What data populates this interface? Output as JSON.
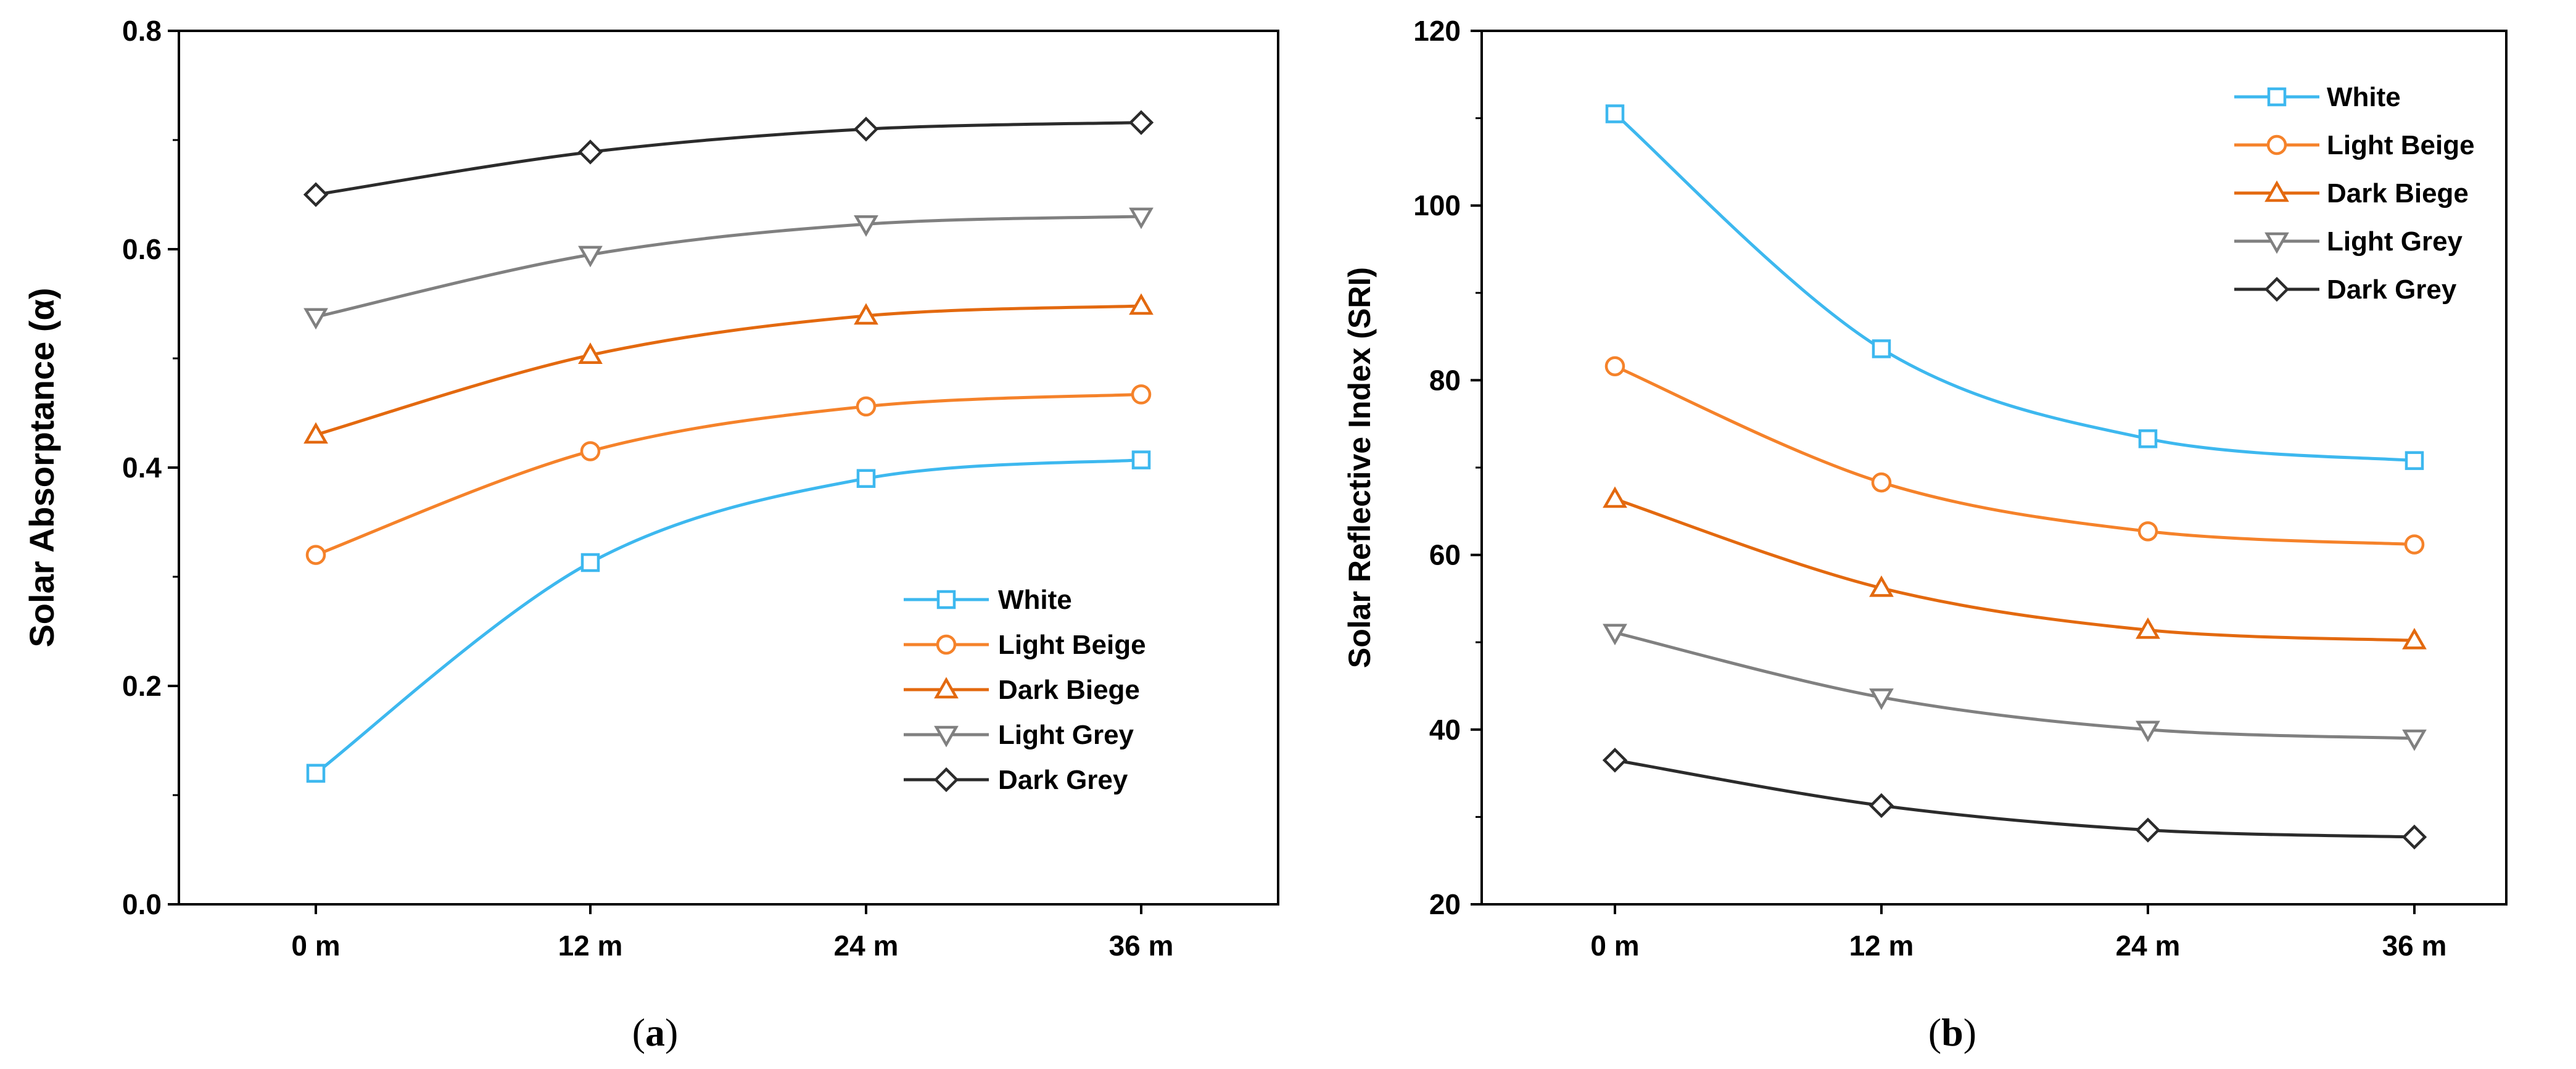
{
  "chart_data": [
    {
      "type": "line",
      "panel_label": "a",
      "title": "",
      "xlabel": "",
      "ylabel": "Solar Absorptance (α)",
      "categories": [
        "0 m",
        "12 m",
        "24 m",
        "36 m"
      ],
      "ylim": [
        0,
        0.8
      ],
      "yticks": [
        0.0,
        0.2,
        0.4,
        0.6,
        0.8
      ],
      "ytick_labels": [
        "0.0",
        "0.2",
        "0.4",
        "0.6",
        "0.8"
      ],
      "grid": false,
      "legend_position": "bottom-right",
      "series": [
        {
          "name": "White",
          "marker": "square",
          "color": "#3DB8EF",
          "values": [
            0.12,
            0.313,
            0.39,
            0.407
          ]
        },
        {
          "name": "Light Beige",
          "marker": "circle",
          "color": "#F5822A",
          "values": [
            0.32,
            0.415,
            0.456,
            0.467
          ]
        },
        {
          "name": "Dark Biege",
          "marker": "triangle-up",
          "color": "#E3690F",
          "values": [
            0.43,
            0.503,
            0.539,
            0.548
          ]
        },
        {
          "name": "Light Grey",
          "marker": "triangle-down",
          "color": "#808080",
          "values": [
            0.538,
            0.595,
            0.623,
            0.63
          ]
        },
        {
          "name": "Dark Grey",
          "marker": "diamond",
          "color": "#2B2B2B",
          "values": [
            0.65,
            0.689,
            0.71,
            0.716
          ]
        }
      ]
    },
    {
      "type": "line",
      "panel_label": "b",
      "title": "",
      "xlabel": "",
      "ylabel": "Solar Reflective Index (SRI)",
      "categories": [
        "0 m",
        "12 m",
        "24 m",
        "36 m"
      ],
      "ylim": [
        20,
        120
      ],
      "yticks": [
        20,
        40,
        60,
        80,
        100,
        120
      ],
      "ytick_labels": [
        "20",
        "40",
        "60",
        "80",
        "100",
        "120"
      ],
      "grid": false,
      "legend_position": "top-right",
      "series": [
        {
          "name": "White",
          "marker": "square",
          "color": "#3DB8EF",
          "values": [
            110.5,
            83.6,
            73.3,
            70.8
          ]
        },
        {
          "name": "Light Beige",
          "marker": "circle",
          "color": "#F5822A",
          "values": [
            81.6,
            68.3,
            62.7,
            61.2
          ]
        },
        {
          "name": "Dark Biege",
          "marker": "triangle-up",
          "color": "#E3690F",
          "values": [
            66.4,
            56.2,
            51.4,
            50.2
          ]
        },
        {
          "name": "Light Grey",
          "marker": "triangle-down",
          "color": "#808080",
          "values": [
            51.1,
            43.7,
            40.0,
            39.0
          ]
        },
        {
          "name": "Dark Grey",
          "marker": "diamond",
          "color": "#2B2B2B",
          "values": [
            36.5,
            31.3,
            28.5,
            27.7
          ]
        }
      ]
    }
  ]
}
